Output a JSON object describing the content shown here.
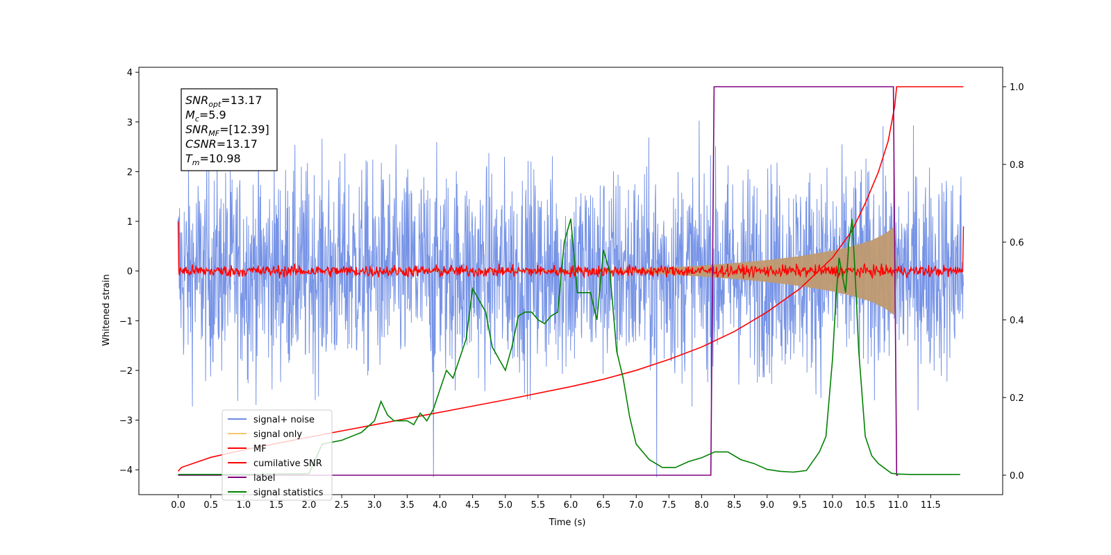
{
  "chart_data": {
    "type": "line",
    "xlabel": "Time (s)",
    "ylabel": "Whitened strain",
    "xlim": [
      -0.6,
      12.6
    ],
    "ylim": [
      -4.5,
      4.1
    ],
    "y2lim": [
      -0.05,
      1.05
    ],
    "x_ticks": [
      0.0,
      0.5,
      1.0,
      1.5,
      2.0,
      2.5,
      3.0,
      3.5,
      4.0,
      4.5,
      5.0,
      5.5,
      6.0,
      6.5,
      7.0,
      7.5,
      8.0,
      8.5,
      9.0,
      9.5,
      10.0,
      10.5,
      11.0,
      11.5
    ],
    "x_tick_labels": [
      "0.0",
      "0.5",
      "1.0",
      "1.5",
      "2.0",
      "2.5",
      "3.0",
      "3.5",
      "4.0",
      "4.5",
      "5.0",
      "5.5",
      "6.0",
      "6.5",
      "7.0",
      "7.5",
      "8.0",
      "8.5",
      "9.0",
      "9.5",
      "10.0",
      "10.5",
      "11.0",
      "11.5"
    ],
    "y_ticks": [
      4,
      3,
      2,
      1,
      0,
      -1,
      -2,
      -3,
      -4
    ],
    "y_tick_labels": [
      "4",
      "3",
      "2",
      "1",
      "0",
      "−1",
      "−2",
      "−3",
      "−4"
    ],
    "y2_ticks": [
      1.0,
      0.8,
      0.6,
      0.4,
      0.2,
      0.0
    ],
    "y2_tick_labels": [
      "1.0",
      "0.8",
      "0.6",
      "0.4",
      "0.2",
      "0.0"
    ],
    "grid": false,
    "legend_position": "lower-left",
    "annotation_lines": [
      {
        "sym": "SNR",
        "sub": "opt",
        "value": "=13.17"
      },
      {
        "sym": "M",
        "sub": "c",
        "value": "=5.9"
      },
      {
        "sym": "SNR",
        "sub": "MF",
        "value": "=[12.39]"
      },
      {
        "sym": "CSNR",
        "sub": "",
        "value": "=13.17"
      },
      {
        "sym": "T",
        "sub": "m",
        "value": "=10.98"
      }
    ],
    "series": [
      {
        "name": "signal+ noise",
        "color": "#6a8ae4",
        "axis": "left",
        "kind": "noise",
        "x_range": [
          0.0,
          12.0
        ],
        "amplitude": 3.6,
        "min_value": -4.15
      },
      {
        "name": "signal only",
        "color": "#f5c66a",
        "axis": "left",
        "kind": "chirp",
        "x": [
          0.0,
          6.5,
          7.0,
          7.5,
          8.0,
          8.5,
          9.0,
          9.5,
          10.0,
          10.3,
          10.6,
          10.8,
          10.95,
          10.98
        ],
        "envelope": [
          0.0,
          0.02,
          0.04,
          0.07,
          0.11,
          0.16,
          0.22,
          0.3,
          0.41,
          0.5,
          0.62,
          0.75,
          0.9,
          0.0
        ]
      },
      {
        "name": "MF",
        "color": "#ff0000",
        "axis": "left",
        "kind": "mf_noise",
        "x_range": [
          0.0,
          12.0
        ],
        "amplitude": 0.15
      },
      {
        "name": "cumilative SNR",
        "color": "#ff0000",
        "axis": "right",
        "x": [
          0.0,
          0.05,
          0.5,
          1.0,
          2.0,
          3.0,
          4.0,
          5.0,
          6.0,
          6.5,
          7.0,
          7.5,
          8.0,
          8.5,
          9.0,
          9.5,
          10.0,
          10.3,
          10.5,
          10.7,
          10.85,
          10.95,
          10.98,
          12.0
        ],
        "values": [
          0.01,
          0.02,
          0.046,
          0.065,
          0.098,
          0.13,
          0.162,
          0.194,
          0.228,
          0.247,
          0.27,
          0.298,
          0.33,
          0.37,
          0.42,
          0.48,
          0.56,
          0.63,
          0.7,
          0.78,
          0.86,
          0.95,
          1.0,
          1.0
        ]
      },
      {
        "name": "label",
        "color": "#800080",
        "axis": "right",
        "x": [
          0.0,
          8.14,
          8.19,
          10.93,
          10.98,
          11.0
        ],
        "values": [
          0.0,
          0.0,
          1.0,
          1.0,
          0.0,
          0.0
        ]
      },
      {
        "name": "signal statistics",
        "color": "#008000",
        "axis": "right",
        "x": [
          0.0,
          1.0,
          2.0,
          2.2,
          2.5,
          2.8,
          3.0,
          3.1,
          3.2,
          3.3,
          3.4,
          3.5,
          3.6,
          3.7,
          3.8,
          3.9,
          4.0,
          4.1,
          4.2,
          4.3,
          4.4,
          4.5,
          4.6,
          4.7,
          4.8,
          4.9,
          5.0,
          5.1,
          5.2,
          5.3,
          5.4,
          5.5,
          5.6,
          5.7,
          5.8,
          5.9,
          6.0,
          6.1,
          6.2,
          6.3,
          6.4,
          6.5,
          6.6,
          6.7,
          6.8,
          6.9,
          7.0,
          7.2,
          7.4,
          7.6,
          7.8,
          8.0,
          8.2,
          8.4,
          8.6,
          8.8,
          9.0,
          9.2,
          9.4,
          9.6,
          9.8,
          9.9,
          10.0,
          10.05,
          10.1,
          10.2,
          10.25,
          10.3,
          10.35,
          10.4,
          10.5,
          10.6,
          10.7,
          10.9,
          11.0,
          11.2,
          11.5,
          11.95
        ],
        "values": [
          0.002,
          0.002,
          0.004,
          0.08,
          0.09,
          0.11,
          0.14,
          0.19,
          0.155,
          0.14,
          0.14,
          0.14,
          0.13,
          0.16,
          0.14,
          0.17,
          0.22,
          0.27,
          0.25,
          0.3,
          0.35,
          0.48,
          0.45,
          0.42,
          0.33,
          0.3,
          0.27,
          0.33,
          0.41,
          0.42,
          0.42,
          0.4,
          0.39,
          0.41,
          0.42,
          0.6,
          0.66,
          0.47,
          0.47,
          0.47,
          0.4,
          0.58,
          0.52,
          0.32,
          0.25,
          0.15,
          0.08,
          0.04,
          0.02,
          0.02,
          0.035,
          0.045,
          0.06,
          0.06,
          0.04,
          0.03,
          0.015,
          0.01,
          0.008,
          0.012,
          0.06,
          0.1,
          0.3,
          0.45,
          0.56,
          0.47,
          0.6,
          0.66,
          0.5,
          0.32,
          0.1,
          0.05,
          0.03,
          0.005,
          0.003,
          0.002,
          0.002,
          0.002
        ]
      }
    ]
  }
}
